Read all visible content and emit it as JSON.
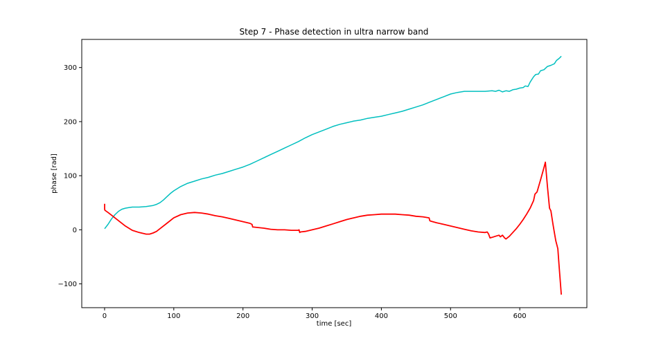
{
  "chart_data": {
    "type": "line",
    "title": "Step 7 - Phase detection in ultra narrow band",
    "xlabel": "time [sec]",
    "ylabel": "phase [rad]",
    "xlim": [
      -33,
      697
    ],
    "ylim": [
      -144,
      352
    ],
    "xticks": [
      0,
      100,
      200,
      300,
      400,
      500,
      600
    ],
    "yticks": [
      -100,
      0,
      100,
      200,
      300
    ],
    "ytick_labels": [
      "−100",
      "0",
      "100",
      "200",
      "300"
    ],
    "grid": false,
    "legend": "none",
    "series": [
      {
        "color": "#00bfbf",
        "stroke_width": 1.5,
        "x": [
          0,
          5,
          10,
          15,
          20,
          25,
          30,
          35,
          40,
          50,
          60,
          70,
          75,
          80,
          85,
          90,
          95,
          100,
          110,
          120,
          130,
          140,
          150,
          160,
          170,
          180,
          190,
          200,
          210,
          220,
          230,
          240,
          250,
          260,
          270,
          280,
          290,
          300,
          310,
          320,
          330,
          340,
          350,
          360,
          370,
          380,
          390,
          400,
          410,
          420,
          430,
          440,
          450,
          460,
          470,
          480,
          490,
          500,
          510,
          520,
          530,
          540,
          550,
          560,
          565,
          570,
          575,
          580,
          585,
          590,
          595,
          600,
          605,
          608,
          612,
          615,
          620,
          623,
          627,
          630,
          635,
          640,
          645,
          650,
          653,
          657,
          660
        ],
        "y": [
          2,
          10,
          20,
          28,
          34,
          38,
          40,
          41,
          42,
          42,
          43,
          45,
          47,
          50,
          55,
          61,
          67,
          72,
          80,
          86,
          90,
          94,
          97,
          101,
          104,
          108,
          112,
          116,
          121,
          127,
          133,
          139,
          145,
          151,
          157,
          163,
          170,
          176,
          181,
          186,
          191,
          195,
          198,
          201,
          203,
          206,
          208,
          210,
          213,
          216,
          219,
          223,
          227,
          231,
          236,
          241,
          246,
          251,
          254,
          256,
          256,
          256,
          256,
          257,
          256,
          258,
          255,
          257,
          256,
          259,
          260,
          262,
          263,
          266,
          265,
          273,
          283,
          287,
          288,
          294,
          296,
          302,
          304,
          307,
          313,
          317,
          321
        ]
      },
      {
        "color": "#ff0000",
        "stroke_width": 1.8,
        "x": [
          0,
          0,
          0.5,
          5,
          10,
          20,
          30,
          40,
          50,
          60,
          65,
          70,
          75,
          80,
          90,
          100,
          110,
          120,
          130,
          140,
          150,
          160,
          170,
          180,
          190,
          200,
          210,
          213,
          214,
          215,
          230,
          240,
          250,
          260,
          270,
          280,
          281,
          282,
          283,
          290,
          300,
          310,
          320,
          330,
          340,
          350,
          360,
          370,
          380,
          390,
          400,
          410,
          420,
          430,
          440,
          450,
          460,
          469,
          470,
          471,
          480,
          490,
          500,
          510,
          520,
          530,
          540,
          550,
          553,
          555,
          557,
          560,
          565,
          570,
          572,
          575,
          578,
          580,
          585,
          590,
          595,
          600,
          605,
          610,
          615,
          620,
          622,
          625,
          630,
          635,
          637,
          640,
          643,
          645,
          648,
          650,
          652,
          655,
          657,
          660
        ],
        "y": [
          48,
          38,
          36,
          32,
          27,
          17,
          7,
          -1,
          -5,
          -8,
          -8,
          -6,
          -3,
          2,
          12,
          22,
          28,
          31,
          32,
          31,
          29,
          26,
          24,
          21,
          18,
          15,
          12,
          10,
          5,
          5,
          3,
          1,
          0,
          0,
          -1,
          -1,
          0,
          -5,
          -4,
          -3,
          0,
          3,
          7,
          11,
          15,
          19,
          22,
          25,
          27,
          28,
          29,
          29,
          29,
          28,
          27,
          25,
          24,
          22,
          17,
          16,
          13,
          10,
          7,
          4,
          1,
          -2,
          -4,
          -5,
          -4,
          -8,
          -15,
          -14,
          -12,
          -10,
          -13,
          -10,
          -15,
          -17,
          -12,
          -5,
          2,
          10,
          19,
          29,
          40,
          54,
          66,
          70,
          92,
          115,
          125,
          80,
          40,
          35,
          10,
          -5,
          -20,
          -35,
          -70,
          -120
        ]
      }
    ]
  }
}
